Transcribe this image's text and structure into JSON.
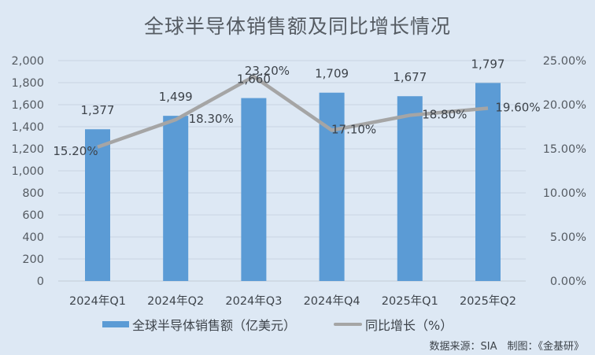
{
  "title": "全球半导体销售额及同比增长情况",
  "legend": {
    "bar_label": "全球半导体销售额（亿美元）",
    "line_label": "同比增长（%）"
  },
  "source": "数据来源：SIA　制图：《金基研》",
  "colors": {
    "background": "#dde8f4",
    "bar": "#5b9bd5",
    "line": "#a5a5a5",
    "gridline": "#c9d5e2",
    "text": "#3d434a"
  },
  "chart_data": {
    "type": "bar+line",
    "title": "全球半导体销售额及同比增长情况",
    "categories": [
      "2024年Q1",
      "2024年Q2",
      "2024年Q3",
      "2024年Q4",
      "2025年Q1",
      "2025年Q2"
    ],
    "series": [
      {
        "name": "全球半导体销售额（亿美元）",
        "type": "bar",
        "axis": "left",
        "values": [
          1377,
          1499,
          1660,
          1709,
          1677,
          1797
        ],
        "labels": [
          "1,377",
          "1,499",
          "1,660",
          "1,709",
          "1,677",
          "1,797"
        ]
      },
      {
        "name": "同比增长（%）",
        "type": "line",
        "axis": "right",
        "values": [
          15.2,
          18.3,
          23.2,
          17.1,
          18.8,
          19.6
        ],
        "labels": [
          "15.20%",
          "18.30%",
          "23.20%",
          "17.10%",
          "18.80%",
          "19.60%"
        ]
      }
    ],
    "left_axis": {
      "ylim": [
        0,
        2000
      ],
      "ticks": [
        "0",
        "200",
        "400",
        "600",
        "800",
        "1,000",
        "1,200",
        "1,400",
        "1,600",
        "1,800",
        "2,000"
      ]
    },
    "right_axis": {
      "ylim": [
        0,
        25
      ],
      "ticks": [
        "0.00%",
        "5.00%",
        "10.00%",
        "15.00%",
        "20.00%",
        "25.00%"
      ]
    },
    "grid": true,
    "legend_position": "bottom",
    "source": "数据来源：SIA　制图：《金基研》"
  }
}
